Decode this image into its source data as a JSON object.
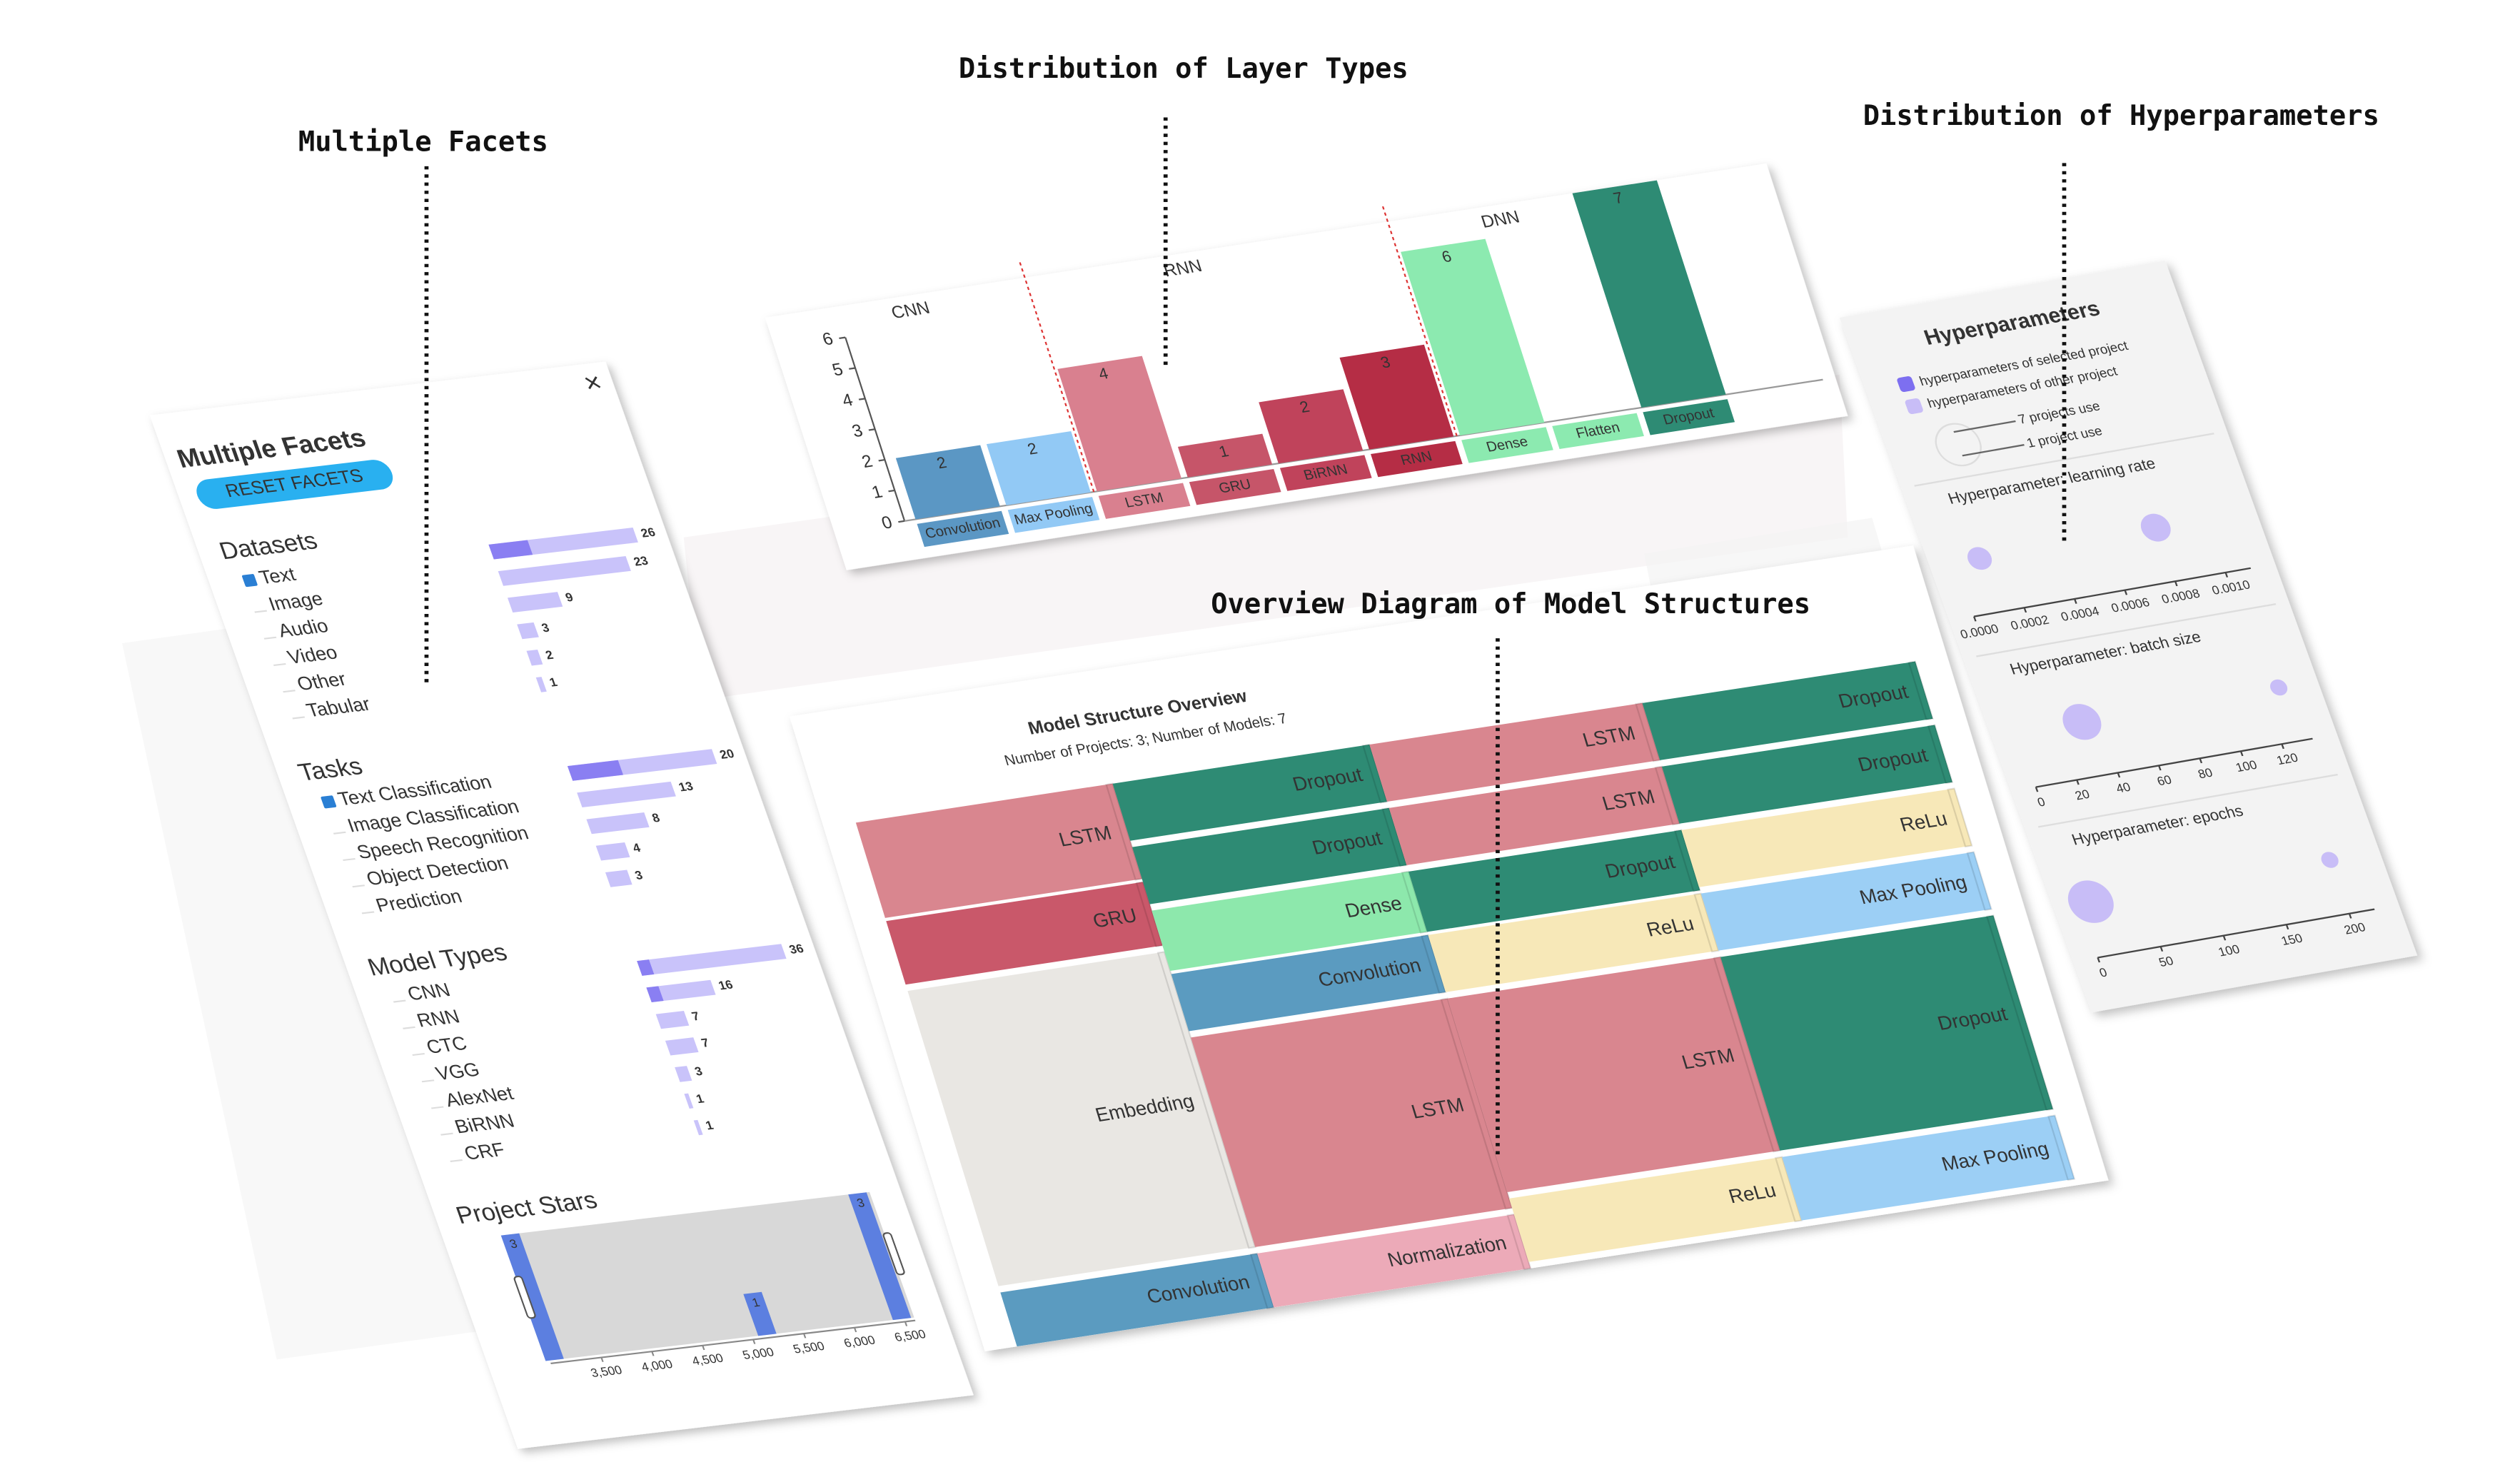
{
  "annotations": [
    "Multiple Facets",
    "Distribution of Layer Types",
    "Distribution of Hyperparameters",
    "Overview Diagram of Model Structures"
  ],
  "facets": {
    "title": "Multiple Facets",
    "reset_button": "RESET FACETS",
    "groups": [
      {
        "name": "Datasets",
        "items": [
          {
            "label": "Text",
            "count": 26,
            "selected": 7,
            "checked": true
          },
          {
            "label": "Image",
            "count": 23
          },
          {
            "label": "Audio",
            "count": 9
          },
          {
            "label": "Video",
            "count": 3
          },
          {
            "label": "Other",
            "count": 2
          },
          {
            "label": "Tabular",
            "count": 1
          }
        ]
      },
      {
        "name": "Tasks",
        "items": [
          {
            "label": "Text Classification",
            "count": 20,
            "selected": 7,
            "checked": true
          },
          {
            "label": "Image Classification",
            "count": 13
          },
          {
            "label": "Speech Recognition",
            "count": 8
          },
          {
            "label": "Object Detection",
            "count": 4
          },
          {
            "label": "Prediction",
            "count": 3
          }
        ]
      },
      {
        "name": "Model Types",
        "items": [
          {
            "label": "CNN",
            "count": 36,
            "selected": 3
          },
          {
            "label": "RNN",
            "count": 16,
            "selected": 3
          },
          {
            "label": "CTC",
            "count": 7
          },
          {
            "label": "VGG",
            "count": 7
          },
          {
            "label": "AlexNet",
            "count": 3
          },
          {
            "label": "BiRNN",
            "count": 1
          },
          {
            "label": "CRF",
            "count": 1
          }
        ]
      }
    ],
    "stars": {
      "title": "Project Stars",
      "xlim": [
        3000,
        6600
      ],
      "xticks": [
        {
          "value": 3500,
          "label": "3,500"
        },
        {
          "value": 4000,
          "label": "4,000"
        },
        {
          "value": 4500,
          "label": "4,500"
        },
        {
          "value": 5000,
          "label": "5,000"
        },
        {
          "value": 5500,
          "label": "5,500"
        },
        {
          "value": 6000,
          "label": "6,000"
        },
        {
          "value": 6500,
          "label": "6,500"
        }
      ],
      "x": [
        3050,
        5150,
        6480
      ],
      "counts": [
        3,
        1,
        3
      ]
    }
  },
  "layer_chart": {
    "ylim": [
      0,
      6
    ],
    "yticks": [
      0,
      1,
      2,
      3,
      4,
      5,
      6
    ],
    "groups": [
      {
        "name": "CNN",
        "layers": [
          {
            "name": "Convolution",
            "count": 2,
            "color": "#5b97c4"
          },
          {
            "name": "Max Pooling",
            "count": 2,
            "color": "#92c9f5"
          }
        ]
      },
      {
        "name": "RNN",
        "layers": [
          {
            "name": "LSTM",
            "count": 4,
            "color": "#d9808f"
          },
          {
            "name": "GRU",
            "count": 1,
            "color": "#c65569"
          },
          {
            "name": "BiRNN",
            "count": 2,
            "color": "#c0435b"
          },
          {
            "name": "RNN",
            "count": 3,
            "color": "#b52d45"
          }
        ]
      },
      {
        "name": "DNN",
        "layers": [
          {
            "name": "Dense",
            "count": 6,
            "color": "#8ceab0"
          },
          {
            "name": "Flatten",
            "count": null,
            "color": "#8ceab0"
          },
          {
            "name": "Dropout",
            "count": 7,
            "color": "#2e8b74"
          }
        ]
      }
    ]
  },
  "sankey": {
    "title": "Model Structure Overview",
    "subtitle": "Number of Projects: 3; Number of Models: 7",
    "columns": [
      [
        {
          "label": "LSTM",
          "color": "#d9868f"
        },
        {
          "label": "GRU",
          "color": "#c9586a"
        },
        {
          "label": "Embedding",
          "color": "#e9e7e3"
        },
        {
          "label": "Convolution",
          "color": "#5b9bc0"
        }
      ],
      [
        {
          "label": "Dropout",
          "color": "#2e8b74"
        },
        {
          "label": "Dropout",
          "color": "#2e8b74"
        },
        {
          "label": "Dense",
          "color": "#8de8ac"
        },
        {
          "label": "Convolution",
          "color": "#5b9bc0"
        },
        {
          "label": "LSTM",
          "color": "#d9868f"
        },
        {
          "label": "Normalization",
          "color": "#ecaab8"
        }
      ],
      [
        {
          "label": "LSTM",
          "color": "#d9868f"
        },
        {
          "label": "LSTM",
          "color": "#d9868f"
        },
        {
          "label": "Dropout",
          "color": "#2e8b74"
        },
        {
          "label": "ReLu",
          "color": "#f7e8b8"
        },
        {
          "label": "LSTM",
          "color": "#d9868f"
        },
        {
          "label": "ReLu",
          "color": "#f7e8b8"
        }
      ],
      [
        {
          "label": "Dropout",
          "color": "#2e8b74"
        },
        {
          "label": "Dropout",
          "color": "#2e8b74"
        },
        {
          "label": "ReLu",
          "color": "#f7e8b8"
        },
        {
          "label": "Max Pooling",
          "color": "#9ccff5"
        },
        {
          "label": "Dropout",
          "color": "#2e8b74"
        },
        {
          "label": "Max Pooling",
          "color": "#9ccff5"
        }
      ]
    ]
  },
  "hyperparameters": {
    "title": "Hyperparameters",
    "legend": {
      "selected": "hyperparameters of selected project",
      "other": "hyperparameters of other project",
      "large": "7 projects use",
      "small": "1 project use"
    },
    "selected_color": "#7d6ff0",
    "other_color": "#c8bdf7",
    "params": [
      {
        "title": "Hyperparameter: learning rate",
        "xlim": [
          0,
          0.0011
        ],
        "xticks": [
          {
            "value": 0,
            "label": "0.0000"
          },
          {
            "value": 0.0002,
            "label": "0.0002"
          },
          {
            "value": 0.0004,
            "label": "0.0004"
          },
          {
            "value": 0.0006,
            "label": "0.0006"
          },
          {
            "value": 0.0008,
            "label": "0.0008"
          },
          {
            "value": 0.001,
            "label": "0.0010"
          }
        ],
        "values": [
          0.0001,
          0.0008
        ],
        "projects": [
          2,
          3
        ]
      },
      {
        "title": "Hyperparameter: batch size",
        "xlim": [
          0,
          135
        ],
        "xticks": [
          0,
          20,
          40,
          60,
          80,
          100,
          120
        ],
        "values": [
          32,
          128
        ],
        "projects": [
          5,
          1
        ]
      },
      {
        "title": "Hyperparameter: epochs",
        "xlim": [
          0,
          220
        ],
        "xticks": [
          0,
          50,
          100,
          150,
          200
        ],
        "values": [
          10,
          200
        ],
        "projects": [
          7,
          1
        ]
      }
    ]
  }
}
